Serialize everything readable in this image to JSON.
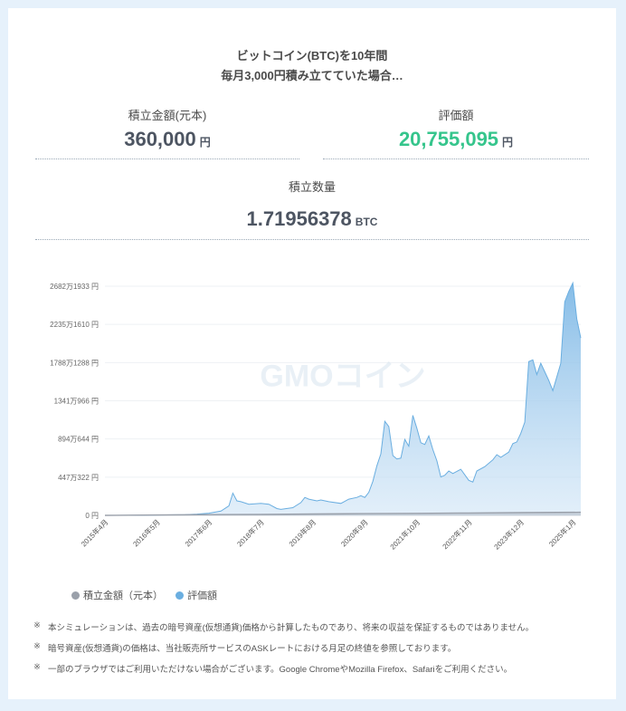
{
  "headline": {
    "line1": "ビットコイン(BTC)を10年間",
    "line2": "毎月3,000円積み立てていた場合…"
  },
  "stats": {
    "principal": {
      "label": "積立金額(元本)",
      "value": "360,000",
      "unit": "円"
    },
    "valuation": {
      "label": "評価額",
      "value": "20,755,095",
      "unit": "円"
    },
    "quantity": {
      "label": "積立数量",
      "value": "1.71956378",
      "unit": "BTC"
    }
  },
  "watermark": "GMOコイン",
  "colors": {
    "valuation_value": "#35c58c",
    "valuation_series": "#6aaee0",
    "principal_series": "#9aa0aa"
  },
  "chart_data": {
    "type": "area",
    "x_ticks": [
      "2015年4月",
      "2016年5月",
      "2017年6月",
      "2018年7月",
      "2019年8月",
      "2020年9月",
      "2021年10月",
      "2022年11月",
      "2023年12月",
      "2025年1月"
    ],
    "y_ticks": [
      "0 円",
      "447万322 円",
      "894万644 円",
      "1341万966 円",
      "1788万1288 円",
      "2235万1610 円",
      "2682万1933 円"
    ],
    "ylim": [
      0,
      26821933
    ],
    "grid": true,
    "legend_position": "bottom-left",
    "series": [
      {
        "name": "積立金額（元本）",
        "x": [
          "2015-04",
          "2016-05",
          "2017-06",
          "2018-07",
          "2019-08",
          "2020-09",
          "2021-10",
          "2022-11",
          "2023-12",
          "2025-03"
        ],
        "values": [
          3000,
          42000,
          81000,
          120000,
          159000,
          198000,
          237000,
          276000,
          315000,
          360000
        ]
      },
      {
        "name": "評価額",
        "x": [
          "2015-04",
          "2016-01",
          "2016-05",
          "2016-12",
          "2017-03",
          "2017-06",
          "2017-09",
          "2017-11",
          "2017-12",
          "2018-01",
          "2018-02",
          "2018-04",
          "2018-07",
          "2018-09",
          "2018-11",
          "2018-12",
          "2019-03",
          "2019-05",
          "2019-06",
          "2019-07",
          "2019-09",
          "2019-10",
          "2019-12",
          "2020-03",
          "2020-05",
          "2020-07",
          "2020-08",
          "2020-09",
          "2020-10",
          "2020-11",
          "2020-12",
          "2021-01",
          "2021-02",
          "2021-03",
          "2021-04",
          "2021-05",
          "2021-06",
          "2021-07",
          "2021-08",
          "2021-09",
          "2021-10",
          "2021-11",
          "2021-12",
          "2022-01",
          "2022-02",
          "2022-03",
          "2022-04",
          "2022-05",
          "2022-06",
          "2022-07",
          "2022-09",
          "2022-11",
          "2022-12",
          "2023-01",
          "2023-03",
          "2023-05",
          "2023-06",
          "2023-07",
          "2023-09",
          "2023-10",
          "2023-11",
          "2023-12",
          "2024-01",
          "2024-02",
          "2024-03",
          "2024-04",
          "2024-05",
          "2024-06",
          "2024-07",
          "2024-08",
          "2024-09",
          "2024-10",
          "2024-11",
          "2024-12",
          "2025-01",
          "2025-02",
          "2025-03"
        ],
        "values": [
          3000,
          15000,
          40000,
          80000,
          150000,
          250000,
          500000,
          1100000,
          2600000,
          1700000,
          1600000,
          1300000,
          1400000,
          1300000,
          800000,
          700000,
          900000,
          1500000,
          2100000,
          1900000,
          1700000,
          1800000,
          1600000,
          1400000,
          1900000,
          2100000,
          2300000,
          2100000,
          2700000,
          4000000,
          5800000,
          7200000,
          11000000,
          10400000,
          7000000,
          6600000,
          6700000,
          8900000,
          8100000,
          11700000,
          10200000,
          8500000,
          8300000,
          9300000,
          7700000,
          6400000,
          4500000,
          4700000,
          5200000,
          4900000,
          5400000,
          4100000,
          3900000,
          5200000,
          5700000,
          6500000,
          7100000,
          6800000,
          7400000,
          8400000,
          8600000,
          9600000,
          10900000,
          18000000,
          18200000,
          16500000,
          17800000,
          16800000,
          15800000,
          14600000,
          16200000,
          17800000,
          25000000,
          26200000,
          27200000,
          23000000,
          20755095
        ]
      }
    ]
  },
  "notes": [
    "本シミュレーションは、過去の暗号資産(仮想通貨)価格から計算したものであり、将来の収益を保証するものではありません。",
    "暗号資産(仮想通貨)の価格は、当社販売所サービスのASKレートにおける月足の終値を参照しております。",
    "一部のブラウザではご利用いただけない場合がございます。Google ChromeやMozilla Firefox、Safariをご利用ください。"
  ],
  "note_mark": "※"
}
